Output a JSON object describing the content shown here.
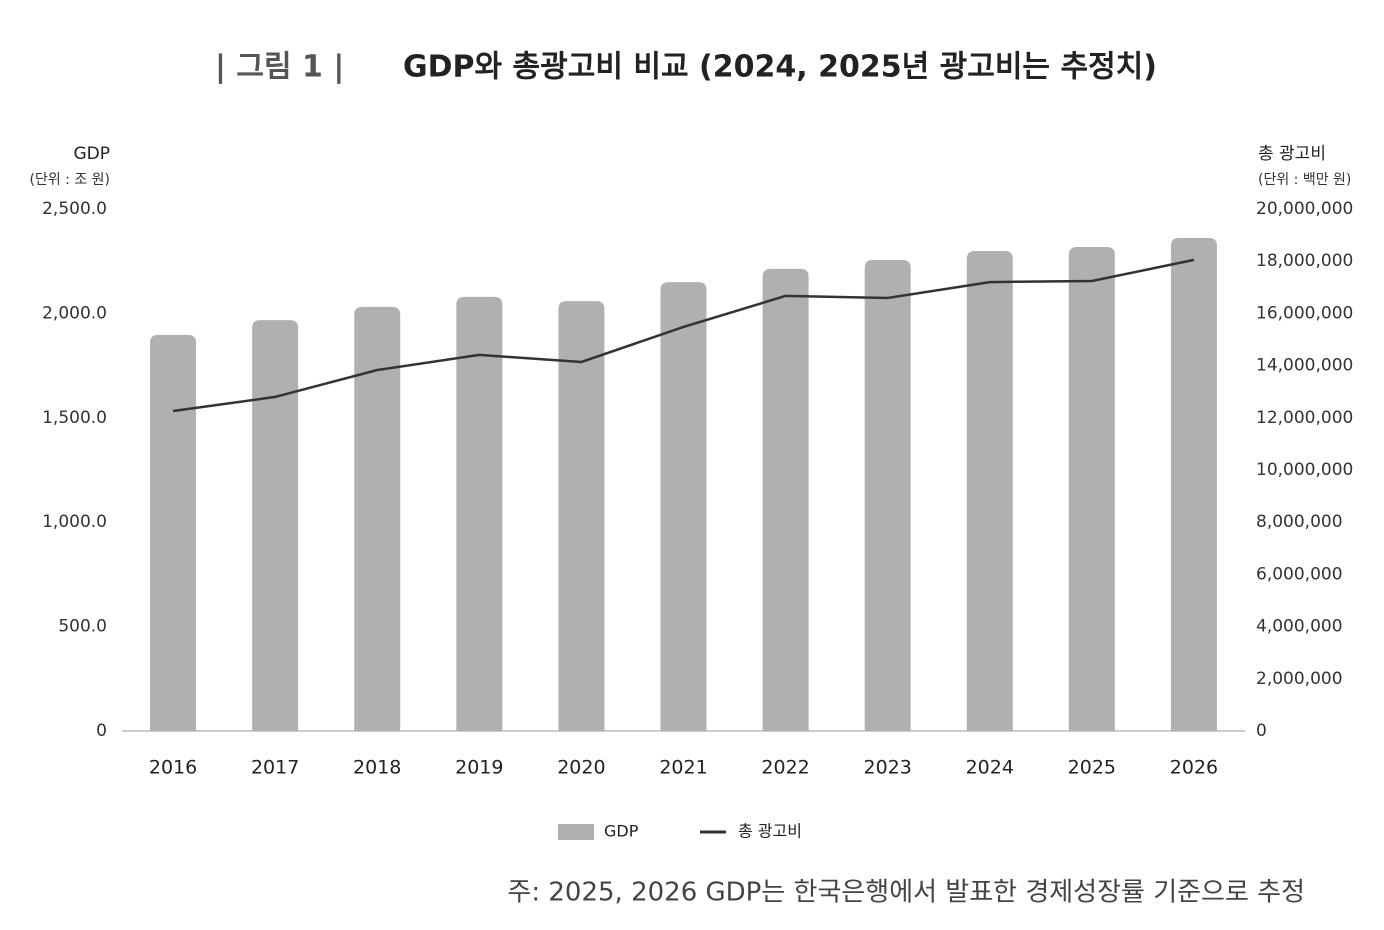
{
  "chart_data": {
    "type": "bar",
    "figure_label": "| 그림 1 |",
    "title": "GDP와 총광고비 비교 (2024, 2025년 광고비는 추정치)",
    "y_label": "GDP",
    "y_unit": "(단위 : 조 원)",
    "y2_label": "총 광고비",
    "y2_unit": "(단위 : 백만 원)",
    "categories": [
      "2016",
      "2017",
      "2018",
      "2019",
      "2020",
      "2021",
      "2022",
      "2023",
      "2024",
      "2025",
      "2026"
    ],
    "series": [
      {
        "name": "GDP",
        "color": "#b0b0b0",
        "type": "bar",
        "values": [
          1897,
          1968,
          2031,
          2079,
          2059,
          2150,
          2213,
          2256,
          2299,
          2318,
          2361
        ]
      },
      {
        "name": "총 광고비",
        "color": "#333333",
        "type": "line",
        "axis": "y2",
        "values": [
          12260000,
          12800000,
          13830000,
          14410000,
          14140000,
          15480000,
          16670000,
          16590000,
          17200000,
          17240000,
          18050000
        ]
      }
    ],
    "ylim": [
      0,
      2500
    ],
    "yticks": [
      0,
      {
        "value": 500,
        "label": "500.0"
      },
      {
        "value": 1000,
        "label": "1,000.0"
      },
      {
        "value": 1500,
        "label": "1,500.0"
      },
      {
        "value": 2000,
        "label": "2,000.0"
      },
      {
        "value": 2500,
        "label": "2,500.0"
      }
    ],
    "y2lim": [
      0,
      20000000
    ],
    "y2ticks": [
      0,
      {
        "value": 2000000,
        "label": "2,000,000"
      },
      {
        "value": 4000000,
        "label": "4,000,000"
      },
      {
        "value": 6000000,
        "label": "6,000,000"
      },
      {
        "value": 8000000,
        "label": "8,000,000"
      },
      {
        "value": 10000000,
        "label": "10,000,000"
      },
      {
        "value": 12000000,
        "label": "12,000,000"
      },
      {
        "value": 14000000,
        "label": "14,000,000"
      },
      {
        "value": 16000000,
        "label": "16,000,000"
      },
      {
        "value": 18000000,
        "label": "18,000,000"
      },
      {
        "value": 20000000,
        "label": "20,000,000"
      }
    ],
    "grid": false,
    "legend": "bottom",
    "note": "주: 2025, 2026 GDP는 한국은행에서 발표한 경제성장률 기준으로 추정"
  }
}
